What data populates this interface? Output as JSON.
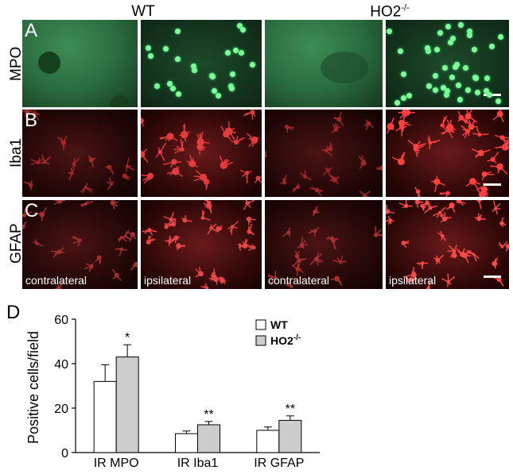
{
  "figure": {
    "headers": {
      "wt": "WT",
      "ho2_base": "HO2",
      "ho2_sup": "-/-"
    },
    "rows": [
      {
        "panel_letter": "A",
        "label": "MPO"
      },
      {
        "panel_letter": "B",
        "label": "Iba1"
      },
      {
        "panel_letter": "C",
        "label": "GFAP"
      }
    ],
    "captions": {
      "contra": "contralateral",
      "ipsi": "ipsilateral"
    },
    "panel_d_letter": "D"
  },
  "chart_data": {
    "type": "bar",
    "categories": [
      "IR MPO",
      "IR Iba1",
      "IR GFAP"
    ],
    "ylabel": "Positive cells/field",
    "ylim": [
      0,
      60
    ],
    "yticks": [
      0,
      20,
      40,
      60
    ],
    "series": [
      {
        "name": "WT",
        "values": [
          32,
          8.5,
          10
        ],
        "errors": [
          7.5,
          1.2,
          1.5
        ],
        "color": "#ffffff"
      },
      {
        "name": "HO2",
        "name_sup": "-/-",
        "values": [
          43,
          12.5,
          14.5
        ],
        "errors": [
          5.5,
          1.5,
          2
        ],
        "color": "#cccccc"
      }
    ],
    "significance": [
      "*",
      "**",
      "**"
    ],
    "legend_position": "top-right"
  }
}
